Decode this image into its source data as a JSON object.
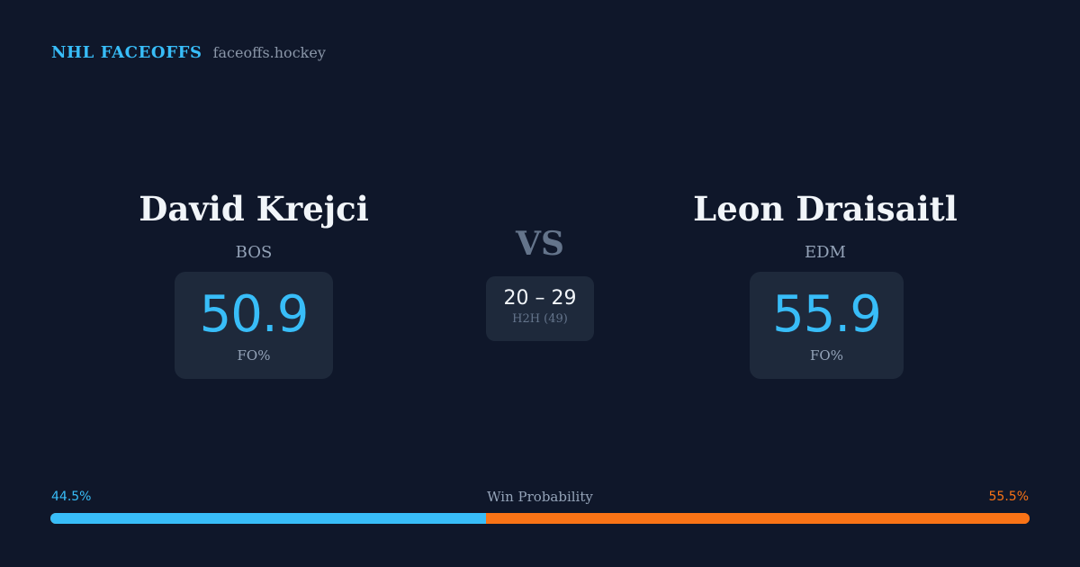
{
  "brand": {
    "name": "NHL FACEOFFS",
    "site": "faceoffs.hockey"
  },
  "player1": {
    "name": "David Krejci",
    "team": "BOS",
    "fo_value": "50.9",
    "fo_label": "FO%"
  },
  "player2": {
    "name": "Leon Draisaitl",
    "team": "EDM",
    "fo_value": "55.9",
    "fo_label": "FO%"
  },
  "versus": {
    "label": "VS",
    "h2h_score": "20 – 29",
    "h2h_label": "H2H (49)"
  },
  "probability": {
    "title": "Win Probability",
    "left_label": "44.5%",
    "right_label": "55.5%",
    "left_fraction": 0.445,
    "left_color": "#38bdf8",
    "right_color": "#f97316"
  }
}
